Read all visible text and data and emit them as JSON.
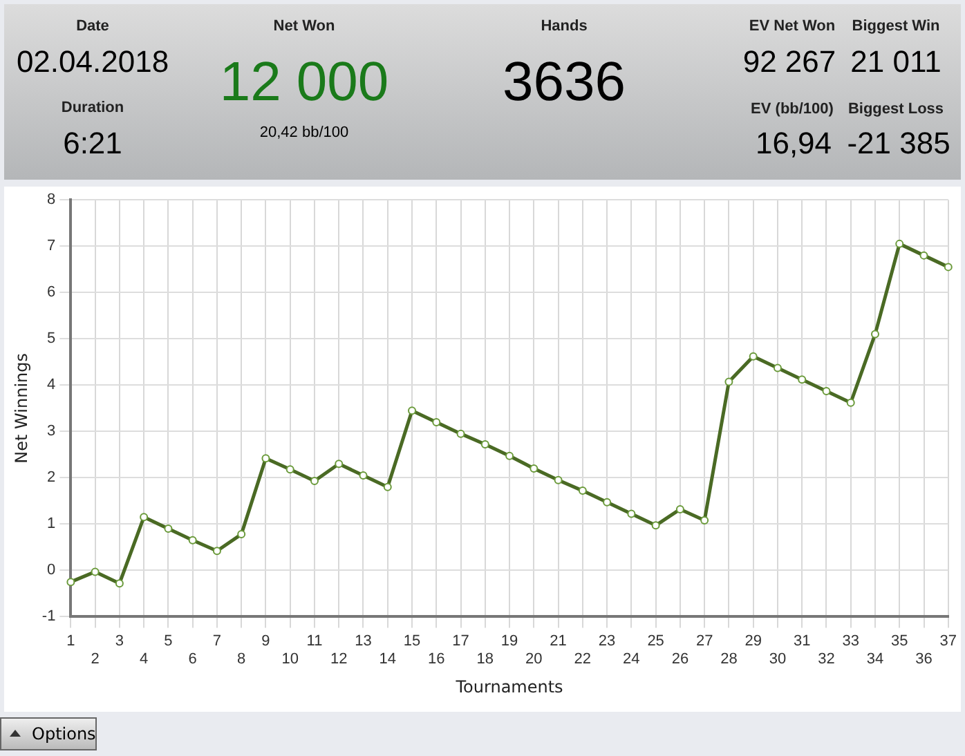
{
  "chart_data": [
    {
      "type": "other",
      "annotations": [
        "Date",
        "02.04.2018",
        "Duration",
        "6:21",
        "Net Won",
        "12 000",
        "20,42 bb/100",
        "Hands",
        "3636",
        "EV Net Won",
        "92 267",
        "EV (bb/100)",
        "16,94",
        "Biggest Win",
        "21 011",
        "Biggest Loss",
        "-21 385",
        "Options"
      ]
    },
    {
      "type": "line",
      "xlabel": "Tournaments",
      "ylabel": "Net Winnings",
      "categories": [
        "1",
        "2",
        "3",
        "4",
        "5",
        "6",
        "7",
        "8",
        "9",
        "10",
        "11",
        "12",
        "13",
        "14",
        "15",
        "16",
        "17",
        "18",
        "19",
        "20",
        "21",
        "22",
        "23",
        "24",
        "25",
        "26",
        "27",
        "28",
        "29",
        "30",
        "31",
        "32",
        "33",
        "34",
        "35",
        "36",
        "37"
      ],
      "series": [
        {
          "color": "#4a6a24",
          "values": [
            -0.25,
            -0.03,
            -0.28,
            1.15,
            0.9,
            0.65,
            0.42,
            0.78,
            2.42,
            2.18,
            1.93,
            2.3,
            2.05,
            1.8,
            3.45,
            3.2,
            2.95,
            2.72,
            2.47,
            2.2,
            1.95,
            1.72,
            1.47,
            1.22,
            0.97,
            1.32,
            1.08,
            4.07,
            4.62,
            4.37,
            4.12,
            3.87,
            3.62,
            5.1,
            7.05,
            6.8,
            6.55
          ]
        }
      ],
      "ylim": [
        -1,
        8
      ],
      "yticks": [
        -1,
        0,
        1,
        2,
        3,
        4,
        5,
        6,
        7,
        8
      ],
      "grid": true,
      "legend": false,
      "marker": "circle",
      "line_style": "solid"
    }
  ]
}
